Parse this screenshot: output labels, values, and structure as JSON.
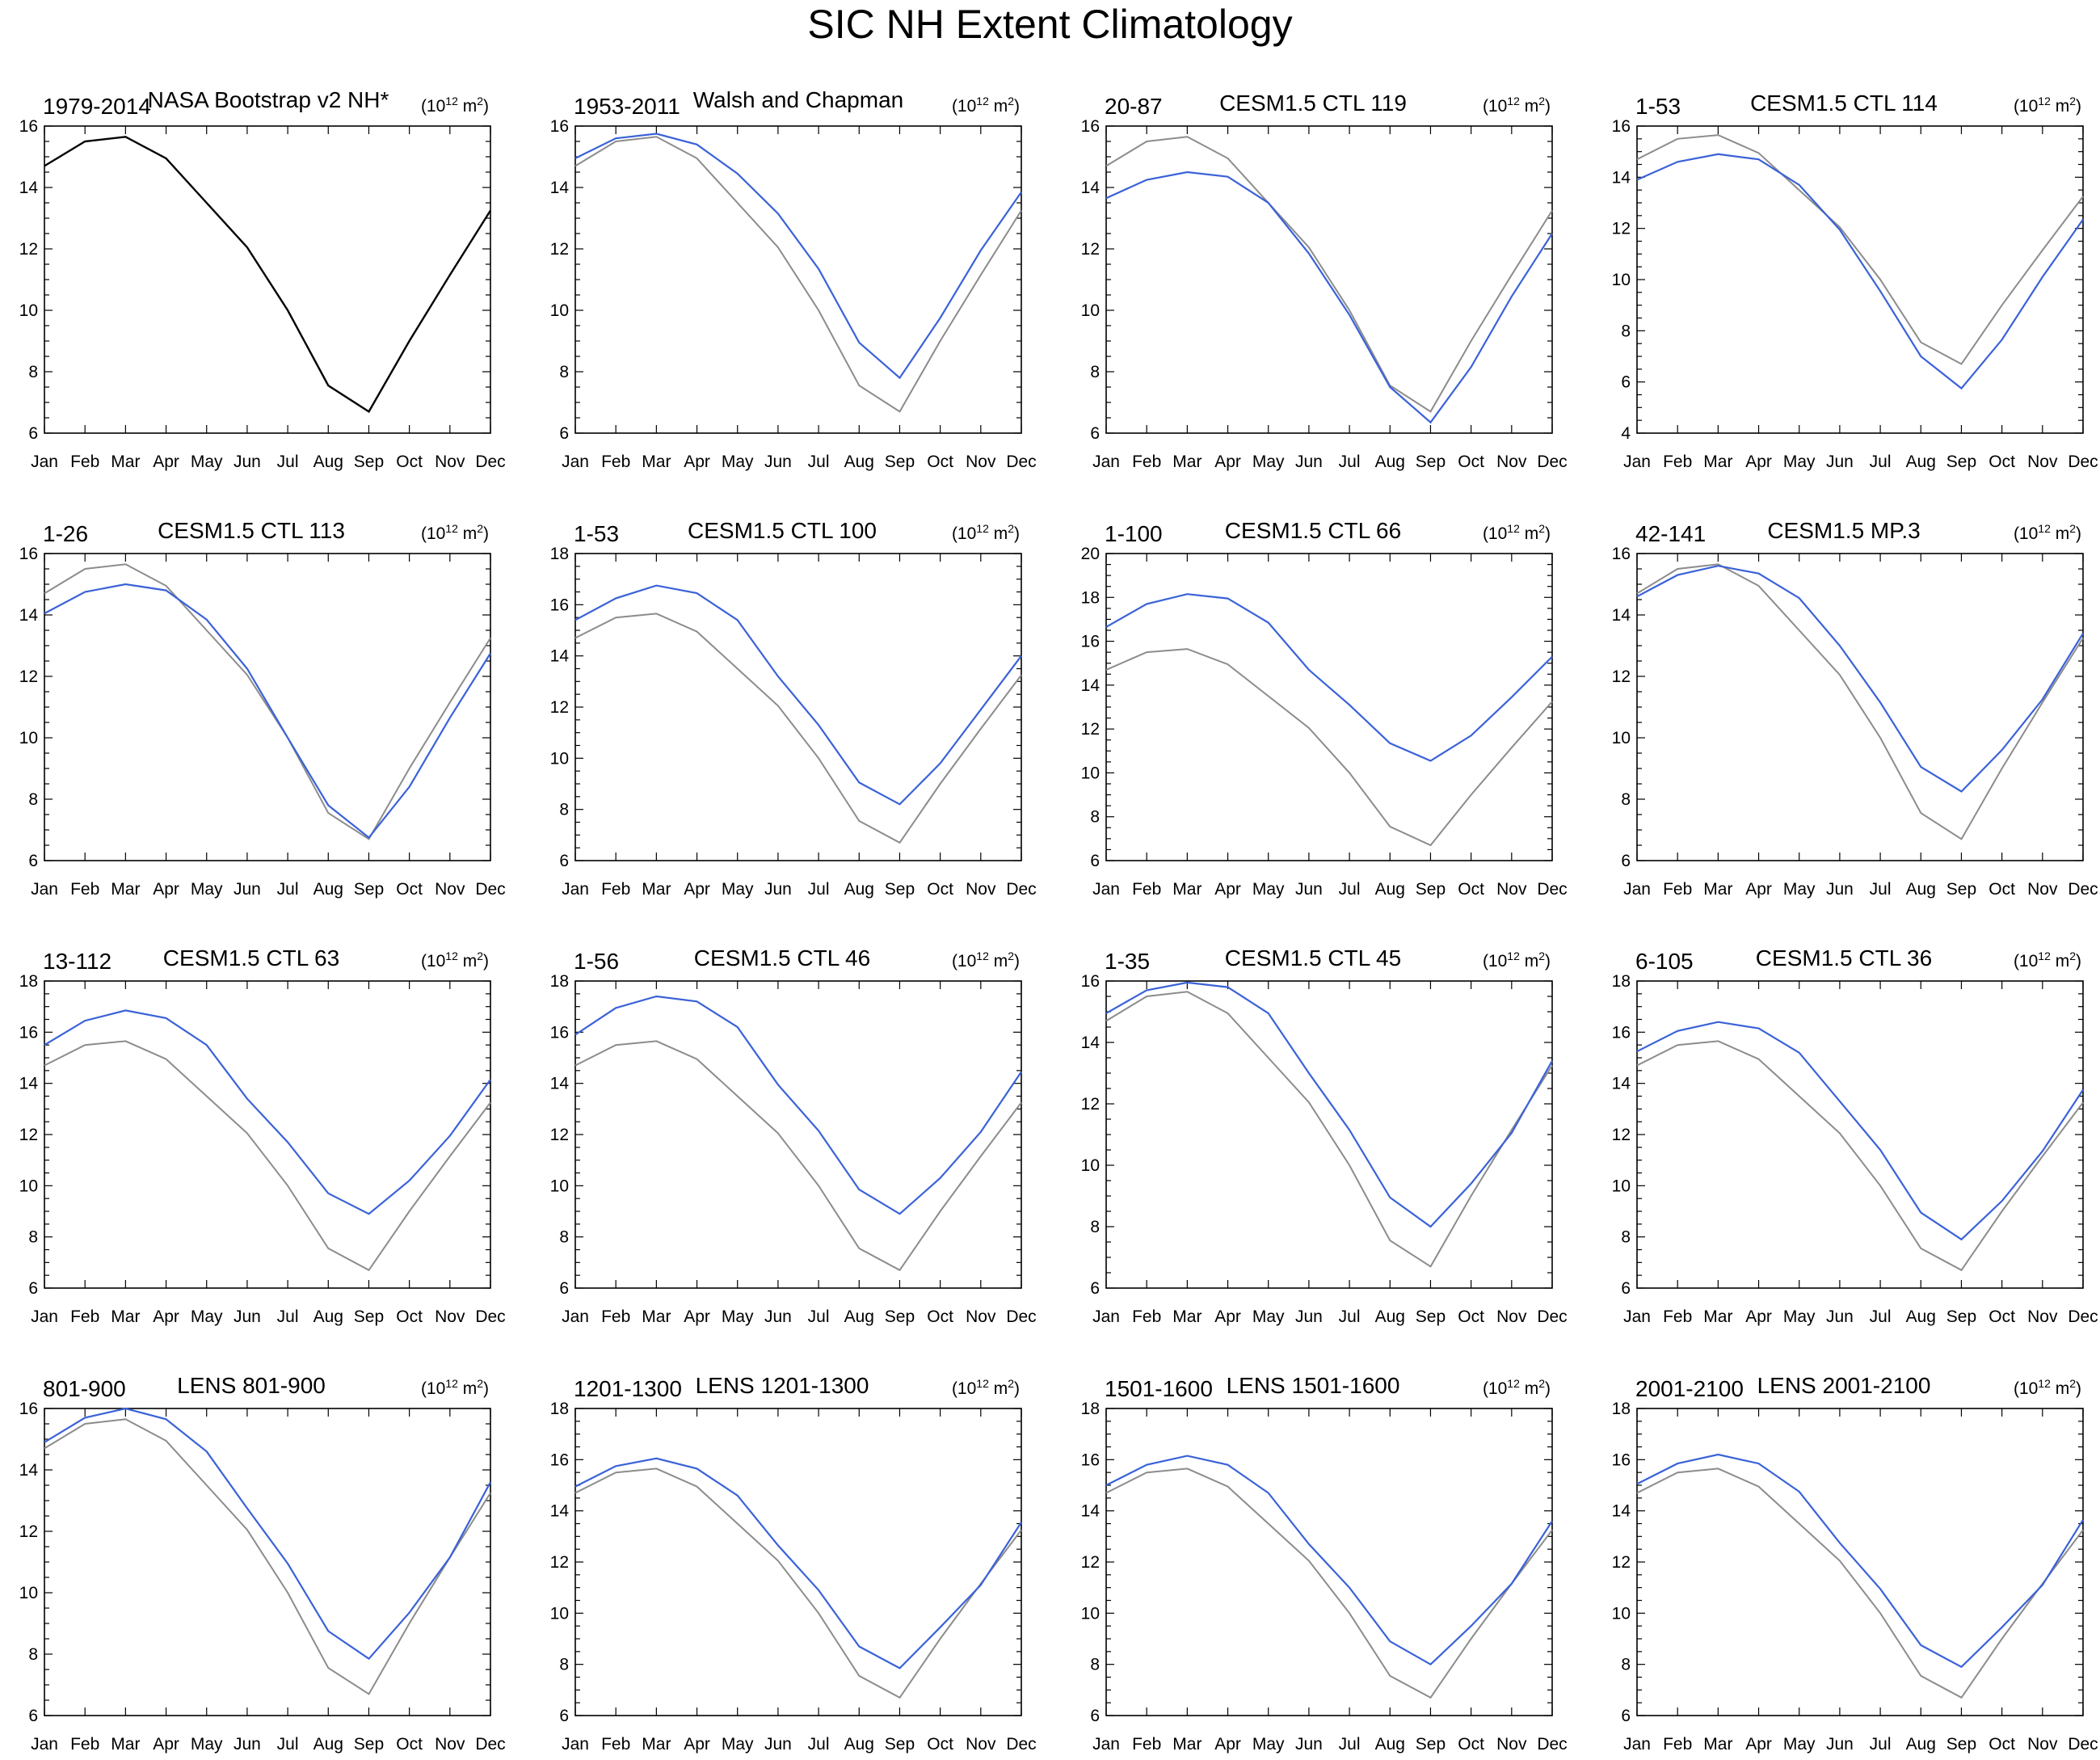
{
  "title": "SIC NH Extent Climatology",
  "colors": {
    "reference": "#000000",
    "obs_overlay": "#8c8c8c",
    "model": "#3a62d8",
    "axis": "#000000"
  },
  "chart_data": [
    {
      "type": "line",
      "left_label": "1979-2014",
      "center_label": "NASA Bootstrap v2 NH*",
      "units": "(10^12 m^2)",
      "categories": [
        "Jan",
        "Feb",
        "Mar",
        "Apr",
        "May",
        "Jun",
        "Jul",
        "Aug",
        "Sep",
        "Oct",
        "Nov",
        "Dec"
      ],
      "ylim": [
        6,
        16
      ],
      "yticks": [
        6,
        8,
        10,
        12,
        14,
        16
      ],
      "reference_only": true,
      "series": [
        {
          "role": "reference",
          "values": [
            14.7,
            15.5,
            15.65,
            14.95,
            13.5,
            12.05,
            10.0,
            7.55,
            6.7,
            9.0,
            11.15,
            13.25
          ]
        }
      ]
    },
    {
      "type": "line",
      "left_label": "1953-2011",
      "center_label": "Walsh and Chapman",
      "units": "(10^12 m^2)",
      "categories": [
        "Jan",
        "Feb",
        "Mar",
        "Apr",
        "May",
        "Jun",
        "Jul",
        "Aug",
        "Sep",
        "Oct",
        "Nov",
        "Dec"
      ],
      "ylim": [
        6,
        16
      ],
      "yticks": [
        6,
        8,
        10,
        12,
        14,
        16
      ],
      "series": [
        {
          "role": "reference",
          "values": [
            14.7,
            15.5,
            15.65,
            14.95,
            13.5,
            12.05,
            10.0,
            7.55,
            6.7,
            9.0,
            11.15,
            13.25
          ]
        },
        {
          "role": "model",
          "values": [
            14.95,
            15.6,
            15.75,
            15.4,
            14.45,
            13.15,
            11.35,
            8.95,
            7.8,
            9.75,
            11.95,
            13.85
          ]
        }
      ]
    },
    {
      "type": "line",
      "left_label": "20-87",
      "center_label": "CESM1.5 CTL 119",
      "units": "(10^12 m^2)",
      "categories": [
        "Jan",
        "Feb",
        "Mar",
        "Apr",
        "May",
        "Jun",
        "Jul",
        "Aug",
        "Sep",
        "Oct",
        "Nov",
        "Dec"
      ],
      "ylim": [
        6,
        16
      ],
      "yticks": [
        6,
        8,
        10,
        12,
        14,
        16
      ],
      "series": [
        {
          "role": "reference",
          "values": [
            14.7,
            15.5,
            15.65,
            14.95,
            13.5,
            12.05,
            10.0,
            7.55,
            6.7,
            9.0,
            11.15,
            13.25
          ]
        },
        {
          "role": "model",
          "values": [
            13.65,
            14.25,
            14.5,
            14.35,
            13.5,
            11.85,
            9.85,
            7.5,
            6.35,
            8.15,
            10.45,
            12.5
          ]
        }
      ]
    },
    {
      "type": "line",
      "left_label": "1-53",
      "center_label": "CESM1.5 CTL 114",
      "units": "(10^12 m^2)",
      "categories": [
        "Jan",
        "Feb",
        "Mar",
        "Apr",
        "May",
        "Jun",
        "Jul",
        "Aug",
        "Sep",
        "Oct",
        "Nov",
        "Dec"
      ],
      "ylim": [
        4,
        16
      ],
      "yticks": [
        4,
        6,
        8,
        10,
        12,
        14,
        16
      ],
      "series": [
        {
          "role": "reference",
          "values": [
            14.7,
            15.5,
            15.65,
            14.95,
            13.5,
            12.05,
            10.0,
            7.55,
            6.7,
            9.0,
            11.15,
            13.25
          ]
        },
        {
          "role": "model",
          "values": [
            13.9,
            14.6,
            14.9,
            14.7,
            13.7,
            11.95,
            9.55,
            7.0,
            5.75,
            7.65,
            10.1,
            12.35
          ]
        }
      ]
    },
    {
      "type": "line",
      "left_label": "1-26",
      "center_label": "CESM1.5 CTL 113",
      "units": "(10^12 m^2)",
      "categories": [
        "Jan",
        "Feb",
        "Mar",
        "Apr",
        "May",
        "Jun",
        "Jul",
        "Aug",
        "Sep",
        "Oct",
        "Nov",
        "Dec"
      ],
      "ylim": [
        6,
        16
      ],
      "yticks": [
        6,
        8,
        10,
        12,
        14,
        16
      ],
      "series": [
        {
          "role": "reference",
          "values": [
            14.7,
            15.5,
            15.65,
            14.95,
            13.5,
            12.05,
            10.0,
            7.55,
            6.7,
            9.0,
            11.15,
            13.25
          ]
        },
        {
          "role": "model",
          "values": [
            14.05,
            14.75,
            15.0,
            14.8,
            13.85,
            12.25,
            10.0,
            7.8,
            6.75,
            8.4,
            10.65,
            12.75
          ]
        }
      ]
    },
    {
      "type": "line",
      "left_label": "1-53",
      "center_label": "CESM1.5 CTL 100",
      "units": "(10^12 m^2)",
      "categories": [
        "Jan",
        "Feb",
        "Mar",
        "Apr",
        "May",
        "Jun",
        "Jul",
        "Aug",
        "Sep",
        "Oct",
        "Nov",
        "Dec"
      ],
      "ylim": [
        6,
        18
      ],
      "yticks": [
        6,
        8,
        10,
        12,
        14,
        16,
        18
      ],
      "series": [
        {
          "role": "reference",
          "values": [
            14.7,
            15.5,
            15.65,
            14.95,
            13.5,
            12.05,
            10.0,
            7.55,
            6.7,
            9.0,
            11.15,
            13.25
          ]
        },
        {
          "role": "model",
          "values": [
            15.4,
            16.25,
            16.75,
            16.45,
            15.4,
            13.2,
            11.3,
            9.05,
            8.2,
            9.8,
            11.9,
            14.0
          ]
        }
      ]
    },
    {
      "type": "line",
      "left_label": "1-100",
      "center_label": "CESM1.5 CTL 66",
      "units": "(10^12 m^2)",
      "categories": [
        "Jan",
        "Feb",
        "Mar",
        "Apr",
        "May",
        "Jun",
        "Jul",
        "Aug",
        "Sep",
        "Oct",
        "Nov",
        "Dec"
      ],
      "ylim": [
        6,
        20
      ],
      "yticks": [
        6,
        8,
        10,
        12,
        14,
        16,
        18,
        20
      ],
      "series": [
        {
          "role": "reference",
          "values": [
            14.7,
            15.5,
            15.65,
            14.95,
            13.5,
            12.05,
            10.0,
            7.55,
            6.7,
            9.0,
            11.15,
            13.25
          ]
        },
        {
          "role": "model",
          "values": [
            16.65,
            17.7,
            18.15,
            17.95,
            16.85,
            14.7,
            13.1,
            11.35,
            10.55,
            11.7,
            13.45,
            15.3
          ]
        }
      ]
    },
    {
      "type": "line",
      "left_label": "42-141",
      "center_label": "CESM1.5 MP.3",
      "units": "(10^12 m^2)",
      "categories": [
        "Jan",
        "Feb",
        "Mar",
        "Apr",
        "May",
        "Jun",
        "Jul",
        "Aug",
        "Sep",
        "Oct",
        "Nov",
        "Dec"
      ],
      "ylim": [
        6,
        16
      ],
      "yticks": [
        6,
        8,
        10,
        12,
        14,
        16
      ],
      "series": [
        {
          "role": "reference",
          "values": [
            14.7,
            15.5,
            15.65,
            14.95,
            13.5,
            12.05,
            10.0,
            7.55,
            6.7,
            9.0,
            11.15,
            13.25
          ]
        },
        {
          "role": "model",
          "values": [
            14.6,
            15.3,
            15.6,
            15.35,
            14.55,
            13.0,
            11.15,
            9.05,
            8.25,
            9.6,
            11.25,
            13.4
          ]
        }
      ]
    },
    {
      "type": "line",
      "left_label": "13-112",
      "center_label": "CESM1.5 CTL 63",
      "units": "(10^12 m^2)",
      "categories": [
        "Jan",
        "Feb",
        "Mar",
        "Apr",
        "May",
        "Jun",
        "Jul",
        "Aug",
        "Sep",
        "Oct",
        "Nov",
        "Dec"
      ],
      "ylim": [
        6,
        18
      ],
      "yticks": [
        6,
        8,
        10,
        12,
        14,
        16,
        18
      ],
      "series": [
        {
          "role": "reference",
          "values": [
            14.7,
            15.5,
            15.65,
            14.95,
            13.5,
            12.05,
            10.0,
            7.55,
            6.7,
            9.0,
            11.15,
            13.25
          ]
        },
        {
          "role": "model",
          "values": [
            15.5,
            16.45,
            16.85,
            16.55,
            15.5,
            13.4,
            11.7,
            9.7,
            8.9,
            10.2,
            11.95,
            14.15
          ]
        }
      ]
    },
    {
      "type": "line",
      "left_label": "1-56",
      "center_label": "CESM1.5 CTL 46",
      "units": "(10^12 m^2)",
      "categories": [
        "Jan",
        "Feb",
        "Mar",
        "Apr",
        "May",
        "Jun",
        "Jul",
        "Aug",
        "Sep",
        "Oct",
        "Nov",
        "Dec"
      ],
      "ylim": [
        6,
        18
      ],
      "yticks": [
        6,
        8,
        10,
        12,
        14,
        16,
        18
      ],
      "series": [
        {
          "role": "reference",
          "values": [
            14.7,
            15.5,
            15.65,
            14.95,
            13.5,
            12.05,
            10.0,
            7.55,
            6.7,
            9.0,
            11.15,
            13.25
          ]
        },
        {
          "role": "model",
          "values": [
            15.9,
            16.95,
            17.4,
            17.2,
            16.2,
            13.95,
            12.15,
            9.85,
            8.9,
            10.3,
            12.1,
            14.45
          ]
        }
      ]
    },
    {
      "type": "line",
      "left_label": "1-35",
      "center_label": "CESM1.5 CTL 45",
      "units": "(10^12 m^2)",
      "categories": [
        "Jan",
        "Feb",
        "Mar",
        "Apr",
        "May",
        "Jun",
        "Jul",
        "Aug",
        "Sep",
        "Oct",
        "Nov",
        "Dec"
      ],
      "ylim": [
        6,
        16
      ],
      "yticks": [
        6,
        8,
        10,
        12,
        14,
        16
      ],
      "series": [
        {
          "role": "reference",
          "values": [
            14.7,
            15.5,
            15.65,
            14.95,
            13.5,
            12.05,
            10.0,
            7.55,
            6.7,
            9.0,
            11.15,
            13.25
          ]
        },
        {
          "role": "model",
          "values": [
            14.95,
            15.7,
            15.95,
            15.8,
            14.95,
            13.0,
            11.15,
            8.95,
            8.0,
            9.4,
            11.05,
            13.4
          ]
        }
      ]
    },
    {
      "type": "line",
      "left_label": "6-105",
      "center_label": "CESM1.5 CTL 36",
      "units": "(10^12 m^2)",
      "categories": [
        "Jan",
        "Feb",
        "Mar",
        "Apr",
        "May",
        "Jun",
        "Jul",
        "Aug",
        "Sep",
        "Oct",
        "Nov",
        "Dec"
      ],
      "ylim": [
        6,
        18
      ],
      "yticks": [
        6,
        8,
        10,
        12,
        14,
        16,
        18
      ],
      "series": [
        {
          "role": "reference",
          "values": [
            14.7,
            15.5,
            15.65,
            14.95,
            13.5,
            12.05,
            10.0,
            7.55,
            6.7,
            9.0,
            11.15,
            13.25
          ]
        },
        {
          "role": "model",
          "values": [
            15.25,
            16.05,
            16.4,
            16.15,
            15.2,
            13.3,
            11.4,
            8.95,
            7.9,
            9.4,
            11.35,
            13.75
          ]
        }
      ]
    },
    {
      "type": "line",
      "left_label": "801-900",
      "center_label": "LENS 801-900",
      "units": "(10^12 m^2)",
      "categories": [
        "Jan",
        "Feb",
        "Mar",
        "Apr",
        "May",
        "Jun",
        "Jul",
        "Aug",
        "Sep",
        "Oct",
        "Nov",
        "Dec"
      ],
      "ylim": [
        6,
        16
      ],
      "yticks": [
        6,
        8,
        10,
        12,
        14,
        16
      ],
      "series": [
        {
          "role": "reference",
          "values": [
            14.7,
            15.5,
            15.65,
            14.95,
            13.5,
            12.05,
            10.0,
            7.55,
            6.7,
            9.0,
            11.15,
            13.25
          ]
        },
        {
          "role": "model",
          "values": [
            14.9,
            15.7,
            16.0,
            15.65,
            14.6,
            12.75,
            10.95,
            8.75,
            7.85,
            9.35,
            11.15,
            13.6
          ]
        }
      ]
    },
    {
      "type": "line",
      "left_label": "1201-1300",
      "center_label": "LENS 1201-1300",
      "units": "(10^12 m^2)",
      "categories": [
        "Jan",
        "Feb",
        "Mar",
        "Apr",
        "May",
        "Jun",
        "Jul",
        "Aug",
        "Sep",
        "Oct",
        "Nov",
        "Dec"
      ],
      "ylim": [
        6,
        18
      ],
      "yticks": [
        6,
        8,
        10,
        12,
        14,
        16,
        18
      ],
      "series": [
        {
          "role": "reference",
          "values": [
            14.7,
            15.5,
            15.65,
            14.95,
            13.5,
            12.05,
            10.0,
            7.55,
            6.7,
            9.0,
            11.15,
            13.25
          ]
        },
        {
          "role": "model",
          "values": [
            14.95,
            15.75,
            16.05,
            15.65,
            14.6,
            12.65,
            10.9,
            8.7,
            7.85,
            9.45,
            11.1,
            13.55
          ]
        }
      ]
    },
    {
      "type": "line",
      "left_label": "1501-1600",
      "center_label": "LENS 1501-1600",
      "units": "(10^12 m^2)",
      "categories": [
        "Jan",
        "Feb",
        "Mar",
        "Apr",
        "May",
        "Jun",
        "Jul",
        "Aug",
        "Sep",
        "Oct",
        "Nov",
        "Dec"
      ],
      "ylim": [
        6,
        18
      ],
      "yticks": [
        6,
        8,
        10,
        12,
        14,
        16,
        18
      ],
      "series": [
        {
          "role": "reference",
          "values": [
            14.7,
            15.5,
            15.65,
            14.95,
            13.5,
            12.05,
            10.0,
            7.55,
            6.7,
            9.0,
            11.15,
            13.25
          ]
        },
        {
          "role": "model",
          "values": [
            15.0,
            15.8,
            16.15,
            15.8,
            14.7,
            12.7,
            11.0,
            8.9,
            8.0,
            9.5,
            11.15,
            13.6
          ]
        }
      ]
    },
    {
      "type": "line",
      "left_label": "2001-2100",
      "center_label": "LENS 2001-2100",
      "units": "(10^12 m^2)",
      "categories": [
        "Jan",
        "Feb",
        "Mar",
        "Apr",
        "May",
        "Jun",
        "Jul",
        "Aug",
        "Sep",
        "Oct",
        "Nov",
        "Dec"
      ],
      "ylim": [
        6,
        18
      ],
      "yticks": [
        6,
        8,
        10,
        12,
        14,
        16,
        18
      ],
      "series": [
        {
          "role": "reference",
          "values": [
            14.7,
            15.5,
            15.65,
            14.95,
            13.5,
            12.05,
            10.0,
            7.55,
            6.7,
            9.0,
            11.15,
            13.25
          ]
        },
        {
          "role": "model",
          "values": [
            15.05,
            15.85,
            16.2,
            15.85,
            14.75,
            12.75,
            10.95,
            8.75,
            7.9,
            9.45,
            11.1,
            13.65
          ]
        }
      ]
    }
  ]
}
